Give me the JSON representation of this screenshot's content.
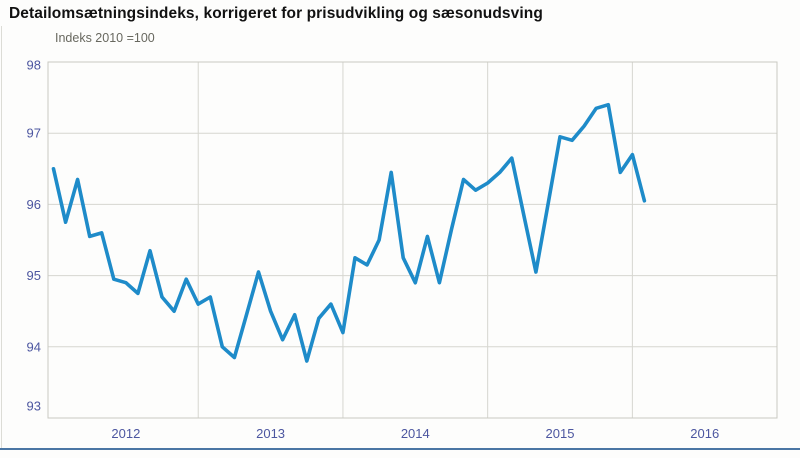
{
  "chart": {
    "title": "Detailomsætningsindeks, korrigeret for prisudvikling og sæsonudsving",
    "unit_label": "Indeks 2010 =100"
  },
  "chart_data": {
    "type": "line",
    "title": "Detailomsætningsindeks, korrigeret for prisudvikling og sæsonudsving",
    "subtitle": "Indeks 2010 =100",
    "x": [
      "2012-01",
      "2012-02",
      "2012-03",
      "2012-04",
      "2012-05",
      "2012-06",
      "2012-07",
      "2012-08",
      "2012-09",
      "2012-10",
      "2012-11",
      "2012-12",
      "2013-01",
      "2013-02",
      "2013-03",
      "2013-04",
      "2013-05",
      "2013-06",
      "2013-07",
      "2013-08",
      "2013-09",
      "2013-10",
      "2013-11",
      "2013-12",
      "2014-01",
      "2014-02",
      "2014-03",
      "2014-04",
      "2014-05",
      "2014-06",
      "2014-07",
      "2014-08",
      "2014-09",
      "2014-10",
      "2014-11",
      "2014-12",
      "2015-01",
      "2015-02",
      "2015-03",
      "2015-04",
      "2015-05",
      "2015-06",
      "2015-07",
      "2015-08",
      "2015-09",
      "2015-10",
      "2015-11",
      "2015-12",
      "2016-01",
      "2016-02"
    ],
    "values": [
      96.5,
      95.75,
      96.35,
      95.55,
      95.6,
      94.95,
      94.9,
      94.75,
      95.35,
      94.7,
      94.5,
      94.95,
      94.6,
      94.7,
      94.0,
      93.85,
      94.45,
      95.05,
      94.5,
      94.1,
      94.45,
      93.8,
      94.4,
      94.6,
      94.2,
      95.25,
      95.15,
      95.5,
      96.45,
      95.25,
      94.9,
      95.55,
      94.9,
      95.65,
      96.35,
      96.2,
      96.3,
      96.45,
      96.65,
      95.85,
      95.05,
      96.0,
      96.95,
      96.9,
      97.1,
      97.35,
      97.4,
      96.45,
      96.7,
      96.05
    ],
    "xlabel": "",
    "ylabel": "",
    "ylim": [
      93,
      98
    ],
    "yticks": [
      93,
      94,
      95,
      96,
      97,
      98
    ],
    "xtick_labels": [
      "2012",
      "2013",
      "2014",
      "2015",
      "2016"
    ],
    "xtick_first_year": 2012,
    "grid": true,
    "legend_position": "none",
    "colors": {
      "line": "#1e8bc9",
      "tick_label": "#4c56a0",
      "gridline": "#d6d6d0",
      "plot_border": "#c9c9c2",
      "bottom_rule": "#4a76a4"
    }
  }
}
